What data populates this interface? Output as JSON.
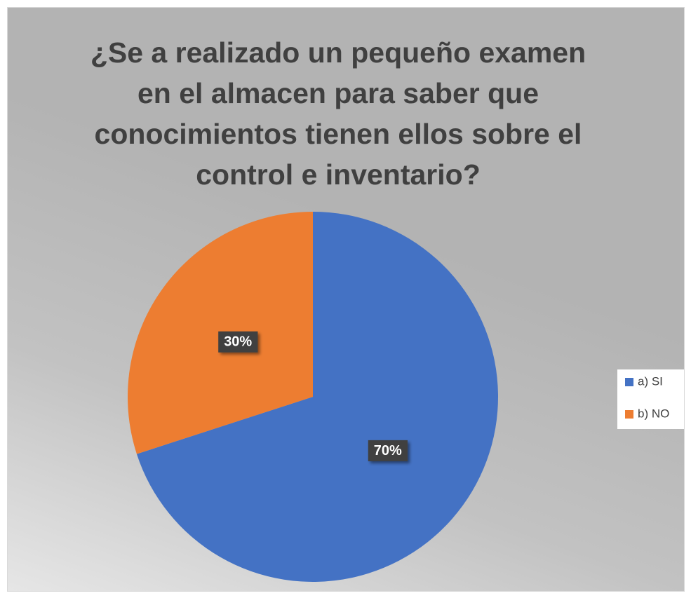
{
  "chart_data": {
    "type": "pie",
    "title": "¿Se a realizado un pequeño examen en el almacen para saber que conocimientos tienen ellos sobre el control e inventario?",
    "categories": [
      "a) SI",
      "b) NO"
    ],
    "values": [
      70,
      30
    ],
    "value_labels": [
      "70%",
      "30%"
    ],
    "colors": [
      "#4472c4",
      "#ed7d31"
    ],
    "legend": "right"
  }
}
